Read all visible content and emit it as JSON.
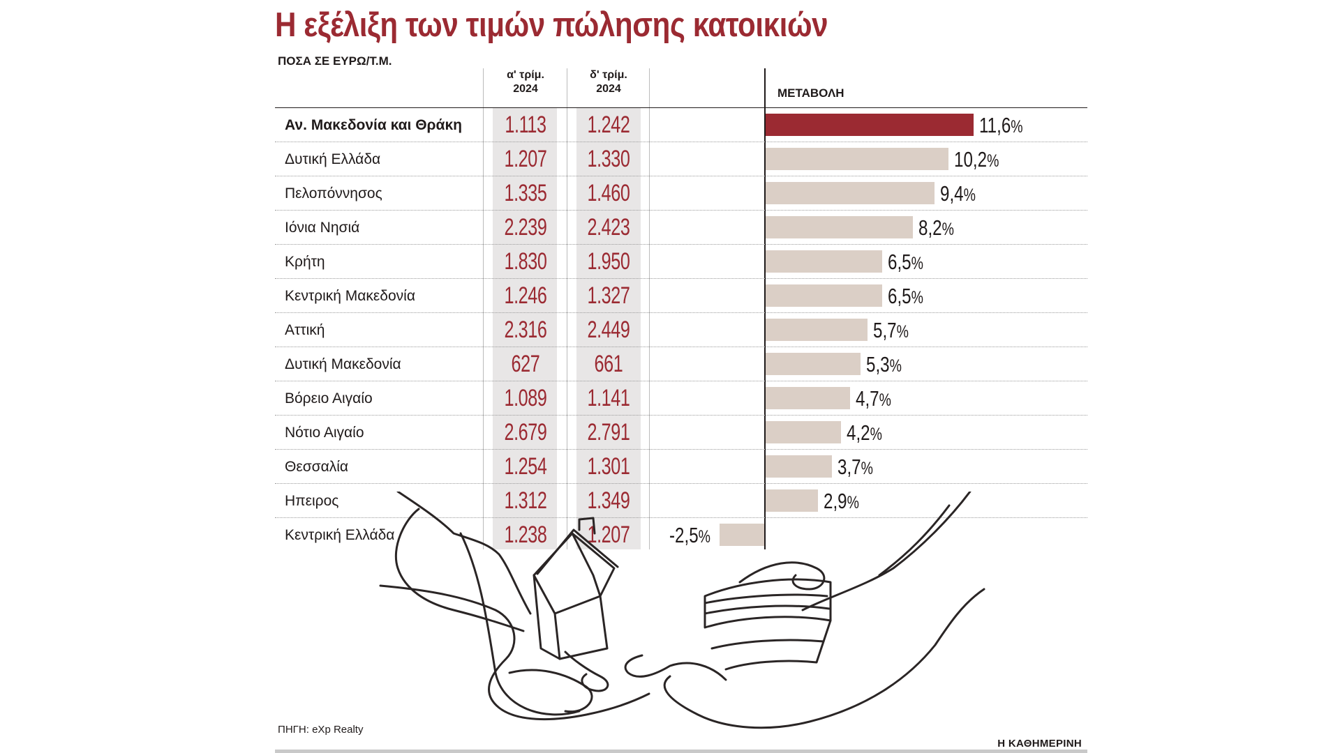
{
  "title": "Η εξέλιξη των τιμών πώλησης κατοικιών",
  "subtitle": "ΠΟΣΑ ΣΕ ΕΥΡΩ/Τ.Μ.",
  "columns": {
    "q1": "α' τρίμ.\n2024",
    "q4": "δ' τρίμ.\n2024",
    "change": "ΜΕΤΑΒΟΛΗ"
  },
  "source": "ΠΗΓΗ: eXp Realty",
  "brand": "Η ΚΑΘΗΜΕΡΙΝΗ",
  "colors": {
    "accent": "#9b2a32",
    "bar": "#dbcfc6",
    "shade": "#e8e6e6",
    "text": "#1f1a1a"
  },
  "chart_data": {
    "type": "table",
    "title": "Η εξέλιξη των τιμών πώλησης κατοικιών",
    "unit": "ΠΟΣΑ ΣΕ ΕΥΡΩ/Τ.Μ.",
    "columns": [
      "α' τρίμ. 2024",
      "δ' τρίμ. 2024",
      "ΜΕΤΑΒΟΛΗ"
    ],
    "rows": [
      {
        "region": "Αν. Μακεδονία και Θράκη",
        "q1": "1.113",
        "q4": "1.242",
        "change": 11.6,
        "change_label": "11,6",
        "highlight": true
      },
      {
        "region": "Δυτική Ελλάδα",
        "q1": "1.207",
        "q4": "1.330",
        "change": 10.2,
        "change_label": "10,2"
      },
      {
        "region": "Πελοπόννησος",
        "q1": "1.335",
        "q4": "1.460",
        "change": 9.4,
        "change_label": "9,4"
      },
      {
        "region": "Ιόνια Νησιά",
        "q1": "2.239",
        "q4": "2.423",
        "change": 8.2,
        "change_label": "8,2"
      },
      {
        "region": "Κρήτη",
        "q1": "1.830",
        "q4": "1.950",
        "change": 6.5,
        "change_label": "6,5"
      },
      {
        "region": "Κεντρική Μακεδονία",
        "q1": "1.246",
        "q4": "1.327",
        "change": 6.5,
        "change_label": "6,5"
      },
      {
        "region": "Αττική",
        "q1": "2.316",
        "q4": "2.449",
        "change": 5.7,
        "change_label": "5,7"
      },
      {
        "region": "Δυτική Μακεδονία",
        "q1": "627",
        "q4": "661",
        "change": 5.3,
        "change_label": "5,3"
      },
      {
        "region": "Βόρειο Αιγαίο",
        "q1": "1.089",
        "q4": "1.141",
        "change": 4.7,
        "change_label": "4,7"
      },
      {
        "region": "Νότιο Αιγαίο",
        "q1": "2.679",
        "q4": "2.791",
        "change": 4.2,
        "change_label": "4,2"
      },
      {
        "region": "Θεσσαλία",
        "q1": "1.254",
        "q4": "1.301",
        "change": 3.7,
        "change_label": "3,7"
      },
      {
        "region": "Ηπειρος",
        "q1": "1.312",
        "q4": "1.349",
        "change": 2.9,
        "change_label": "2,9"
      },
      {
        "region": "Κεντρική Ελλάδα",
        "q1": "1.238",
        "q4": "1.207",
        "change": -2.5,
        "change_label": "-2,5"
      }
    ]
  }
}
